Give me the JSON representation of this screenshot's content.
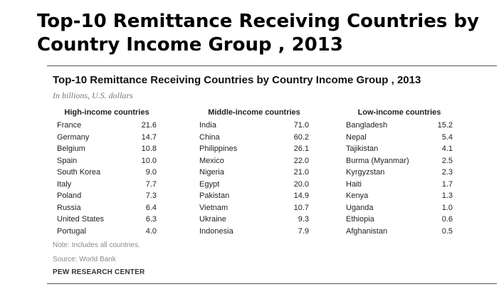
{
  "header": {
    "title": "Top-10 Remittance Receiving Countries by Country Income Group , 2013"
  },
  "card": {
    "title": "Top-10 Remittance Receiving Countries by Country Income Group , 2013",
    "subtitle": "In billions, U.S. dollars",
    "note": "Note: Includes all countries.",
    "source": "Source: World Bank",
    "org": "PEW RESEARCH CENTER"
  },
  "chart_data": {
    "type": "table",
    "title": "Top-10 Remittance Receiving Countries by Country Income Group , 2013",
    "subtitle": "In billions, U.S. dollars",
    "groups": [
      {
        "name": "High-income countries",
        "rows": [
          {
            "country": "France",
            "value": "21.6"
          },
          {
            "country": "Germany",
            "value": "14.7"
          },
          {
            "country": "Belgium",
            "value": "10.8"
          },
          {
            "country": "Spain",
            "value": "10.0"
          },
          {
            "country": "South Korea",
            "value": "9.0"
          },
          {
            "country": "Italy",
            "value": "7.7"
          },
          {
            "country": "Poland",
            "value": "7.3"
          },
          {
            "country": "Russia",
            "value": "6.4"
          },
          {
            "country": "United States",
            "value": "6.3"
          },
          {
            "country": "Portugal",
            "value": "4.0"
          }
        ]
      },
      {
        "name": "Middle-income countries",
        "rows": [
          {
            "country": "India",
            "value": "71.0"
          },
          {
            "country": "China",
            "value": "60.2"
          },
          {
            "country": "Philippines",
            "value": "26.1"
          },
          {
            "country": "Mexico",
            "value": "22.0"
          },
          {
            "country": "Nigeria",
            "value": "21.0"
          },
          {
            "country": "Egypt",
            "value": "20.0"
          },
          {
            "country": "Pakistan",
            "value": "14.9"
          },
          {
            "country": "Vietnam",
            "value": "10.7"
          },
          {
            "country": "Ukraine",
            "value": "9.3"
          },
          {
            "country": "Indonesia",
            "value": "7.9"
          }
        ]
      },
      {
        "name": "Low-income countries",
        "rows": [
          {
            "country": "Bangladesh",
            "value": "15.2"
          },
          {
            "country": "Nepal",
            "value": "5.4"
          },
          {
            "country": "Tajikistan",
            "value": "4.1"
          },
          {
            "country": "Burma (Myanmar)",
            "value": "2.5"
          },
          {
            "country": "Kyrgyzstan",
            "value": "2.3"
          },
          {
            "country": "Haiti",
            "value": "1.7"
          },
          {
            "country": "Kenya",
            "value": "1.3"
          },
          {
            "country": "Uganda",
            "value": "1.0"
          },
          {
            "country": "Ethiopia",
            "value": "0.6"
          },
          {
            "country": "Afghanistan",
            "value": "0.5"
          }
        ]
      }
    ]
  }
}
